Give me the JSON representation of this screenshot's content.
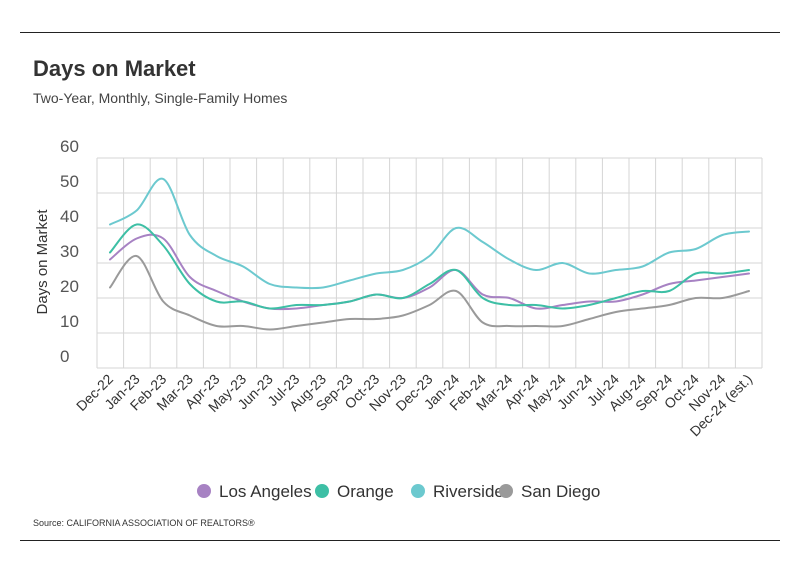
{
  "header": {
    "title": "Days on Market",
    "subtitle": "Two-Year, Monthly, Single-Family Homes"
  },
  "footer": {
    "source": "Source:  CALIFORNIA ASSOCIATION OF REALTORS®"
  },
  "chart_data": {
    "type": "line",
    "title": "Days on Market",
    "subtitle": "Two-Year, Monthly, Single-Family Homes",
    "xlabel": "",
    "ylabel": "Days on Market",
    "ylim": [
      0,
      60
    ],
    "yticks": [
      0,
      10,
      20,
      30,
      40,
      50,
      60
    ],
    "grid": true,
    "legend": "bottom",
    "categories": [
      "Dec-22",
      "Jan-23",
      "Feb-23",
      "Mar-23",
      "Apr-23",
      "May-23",
      "Jun-23",
      "Jul-23",
      "Aug-23",
      "Sep-23",
      "Oct-23",
      "Nov-23",
      "Dec-23",
      "Jan-24",
      "Feb-24",
      "Mar-24",
      "Apr-24",
      "May-24",
      "Jun-24",
      "Jul-24",
      "Aug-24",
      "Sep-24",
      "Oct-24",
      "Nov-24",
      "Dec-24 (est.)"
    ],
    "series": [
      {
        "name": "Los Angeles",
        "color": "#a782c3",
        "values": [
          31,
          37,
          37,
          26,
          22,
          19,
          17,
          17,
          18,
          19,
          21,
          20,
          23,
          28,
          21,
          20,
          17,
          18,
          19,
          19,
          21,
          24,
          25,
          26,
          27
        ]
      },
      {
        "name": "Orange",
        "color": "#3dbfa5",
        "values": [
          33,
          41,
          35,
          24,
          19,
          19,
          17,
          18,
          18,
          19,
          21,
          20,
          24,
          28,
          20,
          18,
          18,
          17,
          18,
          20,
          22,
          22,
          27,
          27,
          28
        ]
      },
      {
        "name": "Riverside",
        "color": "#6cc9cf",
        "values": [
          41,
          45,
          54,
          38,
          32,
          29,
          24,
          23,
          23,
          25,
          27,
          28,
          32,
          40,
          36,
          31,
          28,
          30,
          27,
          28,
          29,
          33,
          34,
          38,
          39
        ]
      },
      {
        "name": "San Diego",
        "color": "#9a9a9a",
        "values": [
          23,
          32,
          19,
          15,
          12,
          12,
          11,
          12,
          13,
          14,
          14,
          15,
          18,
          22,
          13,
          12,
          12,
          12,
          14,
          16,
          17,
          18,
          20,
          20,
          22
        ]
      }
    ]
  }
}
